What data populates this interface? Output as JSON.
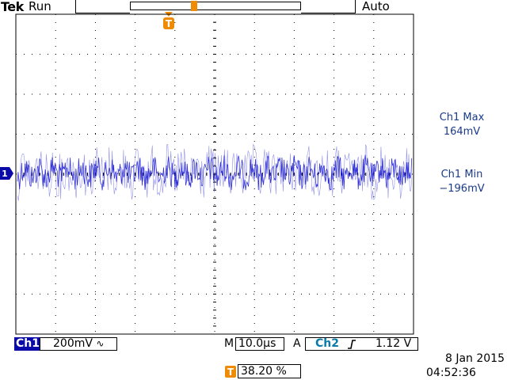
{
  "header": {
    "brand": "Tek",
    "run_state": "Run",
    "trigger_mode": "Auto"
  },
  "colors": {
    "trace": "#1010d0",
    "grid": "#000000",
    "marker": "#f08a00",
    "channel_badge": "#0a0aa8",
    "measurement_text": "#1a3a8c",
    "ch2_text": "#0a7aa8"
  },
  "markers": {
    "trigger_icon": "T",
    "channel_label": "1"
  },
  "measurements": [
    {
      "label": "Ch1 Max",
      "value": "164mV"
    },
    {
      "label": "Ch1 Min",
      "value": "−196mV"
    }
  ],
  "status": {
    "channel": "Ch1",
    "vertical_scale": "200mV",
    "coupling_icon": "∿",
    "time_prefix": "M",
    "time_per_div": "10.0µs",
    "trigger_prefix": "A",
    "trigger_source": "Ch2",
    "trigger_slope_icon": "rising-edge-icon",
    "trigger_level": "1.12 V",
    "position_percent": "38.20 %",
    "date": "8 Jan  2015",
    "time": "04:52:36"
  },
  "graticule": {
    "divisions_x": 10,
    "divisions_y": 8
  }
}
